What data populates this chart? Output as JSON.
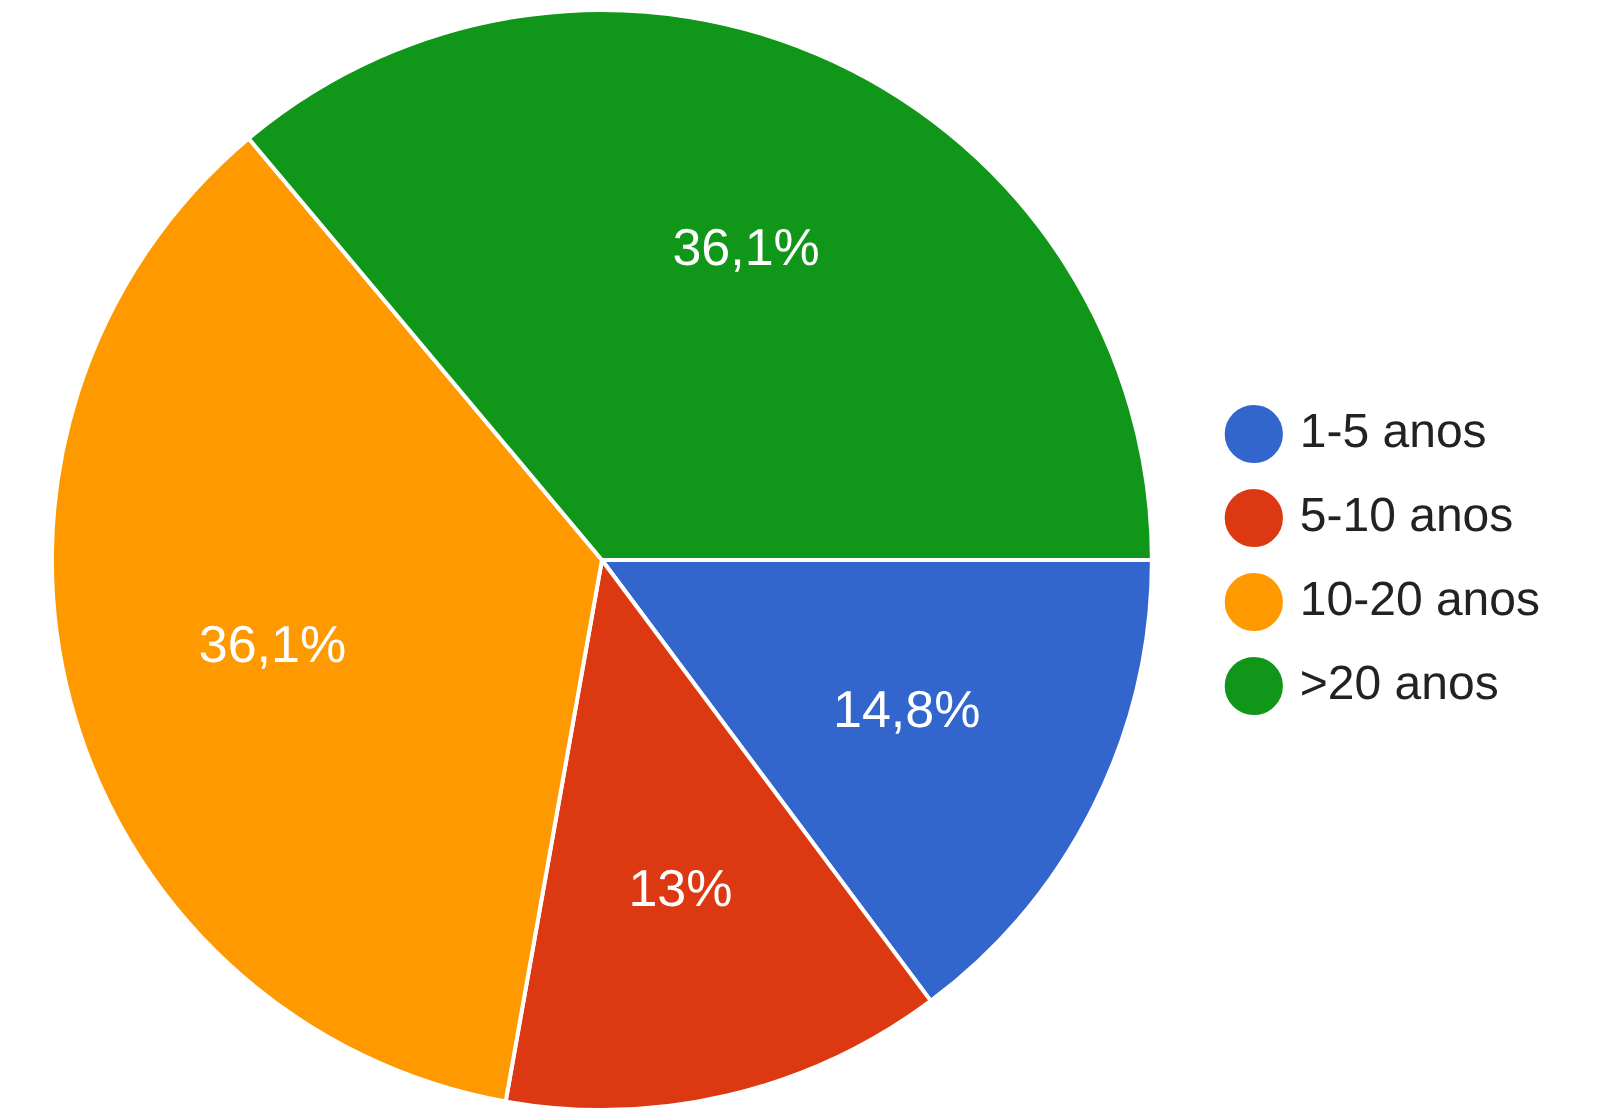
{
  "chart_data": {
    "type": "pie",
    "categories": [
      "1-5 anos",
      "5-10 anos",
      "10-20 anos",
      ">20 anos"
    ],
    "values": [
      14.8,
      13,
      36.1,
      36.1
    ],
    "colors": [
      "#3366cc",
      "#dc3912",
      "#ff9900",
      "#109618"
    ],
    "value_labels": [
      "14,8%",
      "13%",
      "36,1%",
      "36,1%"
    ],
    "legend": "right"
  }
}
